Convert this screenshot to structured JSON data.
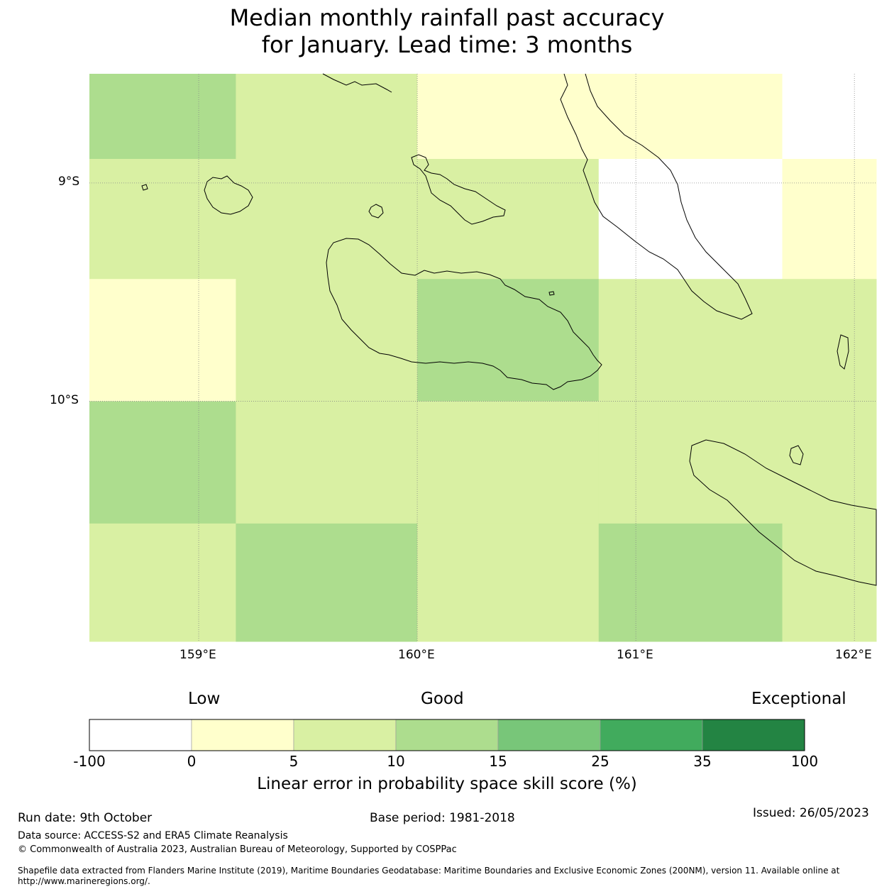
{
  "title": {
    "line1": "Median monthly rainfall past accuracy",
    "line2": "for January. Lead time: 3 months"
  },
  "map": {
    "lat_labels": [
      "9°S",
      "10°S"
    ],
    "lon_labels": [
      "159°E",
      "160°E",
      "161°E",
      "162°E"
    ],
    "lon_range": [
      158.5,
      162.1
    ],
    "lat_range": [
      -8.5,
      -11.1
    ],
    "grid_lons": [
      159,
      160,
      161,
      162
    ],
    "grid_lats": [
      -9,
      -10
    ],
    "cell_lon_edges": [
      158.5,
      159.17,
      160.0,
      160.83,
      161.67,
      162.1
    ],
    "cell_lat_edges": [
      -8.5,
      -8.89,
      -9.44,
      -10.0,
      -10.56,
      -11.1
    ],
    "skill_categories": [
      [
        3,
        2,
        1,
        1,
        0
      ],
      [
        2,
        2,
        2,
        0,
        1
      ],
      [
        1,
        2,
        3,
        2,
        2
      ],
      [
        3,
        2,
        2,
        2,
        2
      ],
      [
        2,
        3,
        2,
        3,
        2
      ]
    ]
  },
  "colorbar": {
    "category_words": [
      "Low",
      "Good",
      "Exceptional"
    ],
    "tick_labels": [
      "-100",
      "0",
      "5",
      "10",
      "15",
      "25",
      "35",
      "100"
    ],
    "colors": [
      "#ffffff",
      "#ffffcc",
      "#d9f0a3",
      "#addd8e",
      "#78c679",
      "#41ab5d",
      "#238443"
    ],
    "title": "Linear error in probability space skill score (%)"
  },
  "footer": {
    "run_date": "Run date: 9th October",
    "base_period": "Base period: 1981-2018",
    "issued": "Issued: 26/05/2023",
    "data_source": "Data source: ACCESS-S2 and ERA5 Climate Reanalysis",
    "copyright": "© Commonwealth of Australia 2023, Australian Bureau of Meteorology, Supported by COSPPac",
    "shapefile_line1": "Shapefile data extracted from Flanders Marine Institute (2019), Maritime Boundaries Geodatabase: Maritime Boundaries and Exclusive Economic Zones (200NM), version 11. Available online at",
    "shapefile_line2": "http://www.marineregions.org/."
  }
}
